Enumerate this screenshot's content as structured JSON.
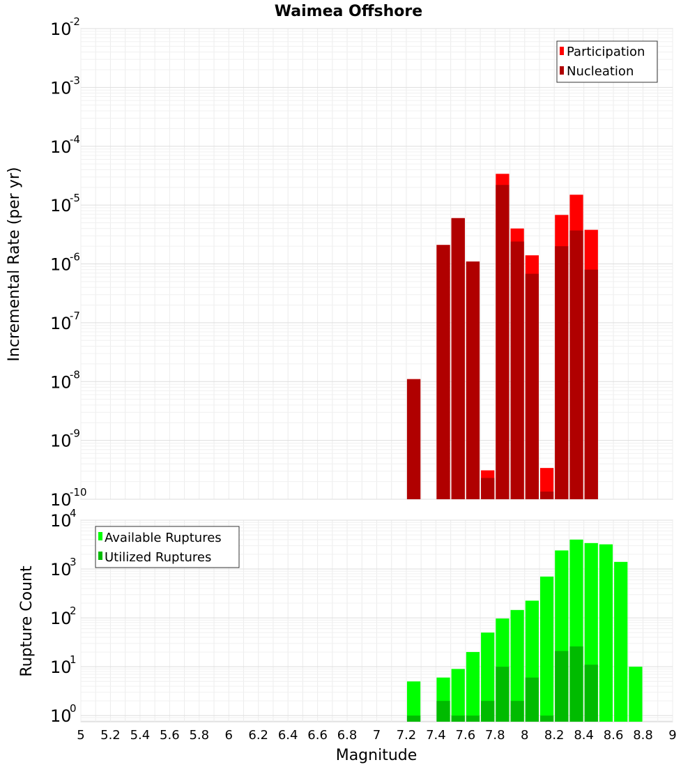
{
  "chart_data": [
    {
      "type": "bar",
      "title": "Waimea Offshore",
      "xlabel": "",
      "ylabel": "Incremental Rate (per yr)",
      "yscale": "log",
      "xlim": [
        5,
        9
      ],
      "ylim": [
        1e-10,
        0.01
      ],
      "y_ticks": [
        {
          "base": "10",
          "exp": "-2",
          "value": 0.01
        },
        {
          "base": "10",
          "exp": "-3",
          "value": 0.001
        },
        {
          "base": "10",
          "exp": "-4",
          "value": 0.0001
        },
        {
          "base": "10",
          "exp": "-5",
          "value": 1e-05
        },
        {
          "base": "10",
          "exp": "-6",
          "value": 1e-06
        },
        {
          "base": "10",
          "exp": "-7",
          "value": 1e-07
        },
        {
          "base": "10",
          "exp": "-8",
          "value": 1e-08
        },
        {
          "base": "10",
          "exp": "-9",
          "value": 1e-09
        },
        {
          "base": "10",
          "exp": "-10",
          "value": 1e-10
        }
      ],
      "legend": {
        "position": "top-right"
      },
      "grid": true,
      "series": [
        {
          "name": "Participation",
          "color": "#ff0000",
          "x": [
            7.25,
            7.45,
            7.55,
            7.65,
            7.75,
            7.85,
            7.95,
            8.05,
            8.15,
            8.25,
            8.35,
            8.45
          ],
          "values": [
            1.1e-08,
            2.1e-06,
            6e-06,
            1.1e-06,
            3.1e-10,
            3.4e-05,
            4e-06,
            1.4e-06,
            3.4e-10,
            6.8e-06,
            1.5e-05,
            3.8e-06
          ]
        },
        {
          "name": "Nucleation",
          "color": "#b00000",
          "x": [
            7.25,
            7.45,
            7.55,
            7.65,
            7.75,
            7.85,
            7.95,
            8.05,
            8.15,
            8.25,
            8.35,
            8.45
          ],
          "values": [
            1.1e-08,
            2.1e-06,
            6e-06,
            1.1e-06,
            2.3e-10,
            2.2e-05,
            2.4e-06,
            6.8e-07,
            1.35e-10,
            2e-06,
            3.7e-06,
            8e-07
          ]
        }
      ]
    },
    {
      "type": "bar",
      "title": "",
      "xlabel": "Magnitude",
      "ylabel": "Rupture Count",
      "yscale": "log",
      "xlim": [
        5,
        9
      ],
      "ylim": [
        0.75,
        10000
      ],
      "x_ticks": [
        "5",
        "5.2",
        "5.4",
        "5.6",
        "5.8",
        "6",
        "6.2",
        "6.4",
        "6.6",
        "6.8",
        "7",
        "7.2",
        "7.4",
        "7.6",
        "7.8",
        "8",
        "8.2",
        "8.4",
        "8.6",
        "8.8",
        "9"
      ],
      "y_ticks": [
        {
          "base": "10",
          "exp": "4",
          "value": 10000
        },
        {
          "base": "10",
          "exp": "3",
          "value": 1000
        },
        {
          "base": "10",
          "exp": "2",
          "value": 100
        },
        {
          "base": "10",
          "exp": "1",
          "value": 10
        },
        {
          "base": "10",
          "exp": "0",
          "value": 1
        }
      ],
      "legend": {
        "position": "top-left"
      },
      "grid": true,
      "series": [
        {
          "name": "Available Ruptures",
          "color": "#00ff00",
          "x": [
            7.25,
            7.45,
            7.55,
            7.65,
            7.75,
            7.85,
            7.95,
            8.05,
            8.15,
            8.25,
            8.35,
            8.45,
            8.55,
            8.65,
            8.75
          ],
          "values": [
            5,
            6,
            9,
            20,
            50,
            97,
            145,
            225,
            700,
            2400,
            4000,
            3400,
            3200,
            1400,
            10
          ]
        },
        {
          "name": "Utilized Ruptures",
          "color": "#00bb00",
          "x": [
            7.25,
            7.45,
            7.55,
            7.65,
            7.75,
            7.85,
            7.95,
            8.05,
            8.15,
            8.25,
            8.35,
            8.45
          ],
          "values": [
            1,
            2,
            1,
            1,
            2,
            10,
            2,
            6,
            1,
            21,
            26,
            11
          ]
        }
      ]
    }
  ]
}
